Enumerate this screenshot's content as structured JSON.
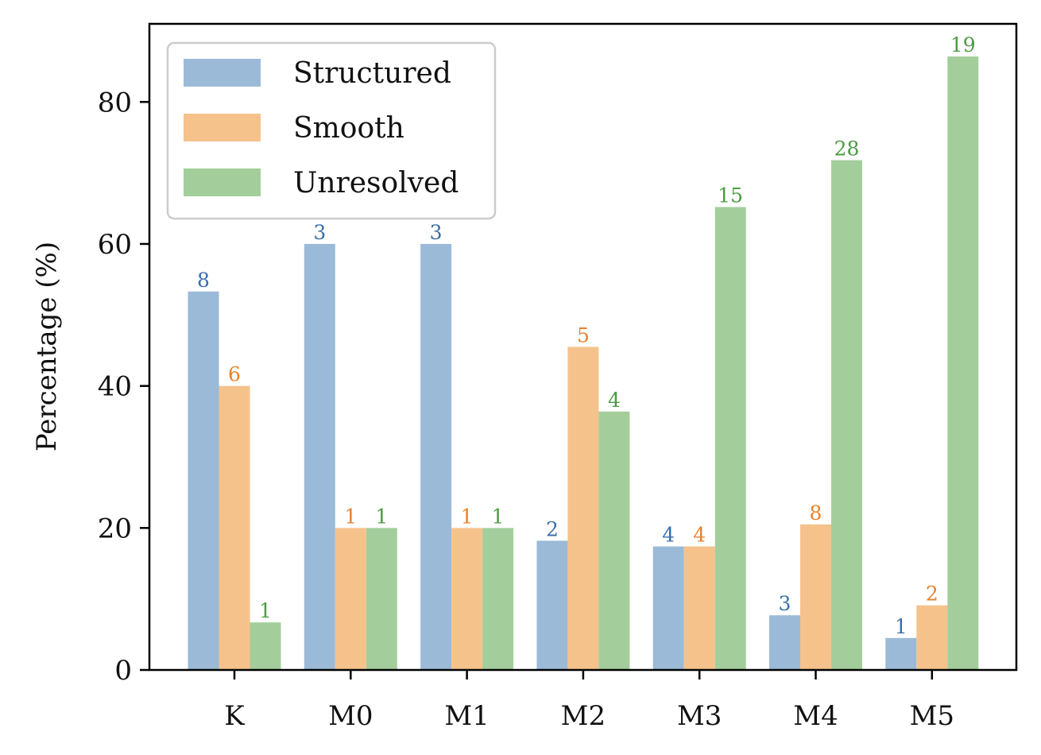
{
  "chart_data": {
    "type": "bar",
    "title": "",
    "xlabel": "",
    "ylabel": "Percentage (%)",
    "ylim": [
      0,
      91
    ],
    "yticks": [
      0,
      20,
      40,
      60,
      80
    ],
    "grid": false,
    "legend_position": "top-left",
    "categories": [
      "K",
      "M0",
      "M1",
      "M2",
      "M3",
      "M4",
      "M5"
    ],
    "series": [
      {
        "name": "Structured",
        "color": "#9bbad8",
        "label_color": "#3a6fa8",
        "values": [
          53.3,
          60.0,
          60.0,
          18.2,
          17.4,
          7.7,
          4.5
        ],
        "counts": [
          "8",
          "3",
          "3",
          "2",
          "4",
          "3",
          "1"
        ]
      },
      {
        "name": "Smooth",
        "color": "#f5c28c",
        "label_color": "#e8822e",
        "values": [
          40.0,
          20.0,
          20.0,
          45.5,
          17.4,
          20.5,
          9.1
        ],
        "counts": [
          "6",
          "1",
          "1",
          "5",
          "4",
          "8",
          "2"
        ]
      },
      {
        "name": "Unresolved",
        "color": "#a3ce9b",
        "label_color": "#4c9a42",
        "values": [
          6.7,
          20.0,
          20.0,
          36.4,
          65.2,
          71.8,
          86.4
        ],
        "counts": [
          "1",
          "1",
          "1",
          "4",
          "15",
          "28",
          "19"
        ]
      }
    ]
  }
}
